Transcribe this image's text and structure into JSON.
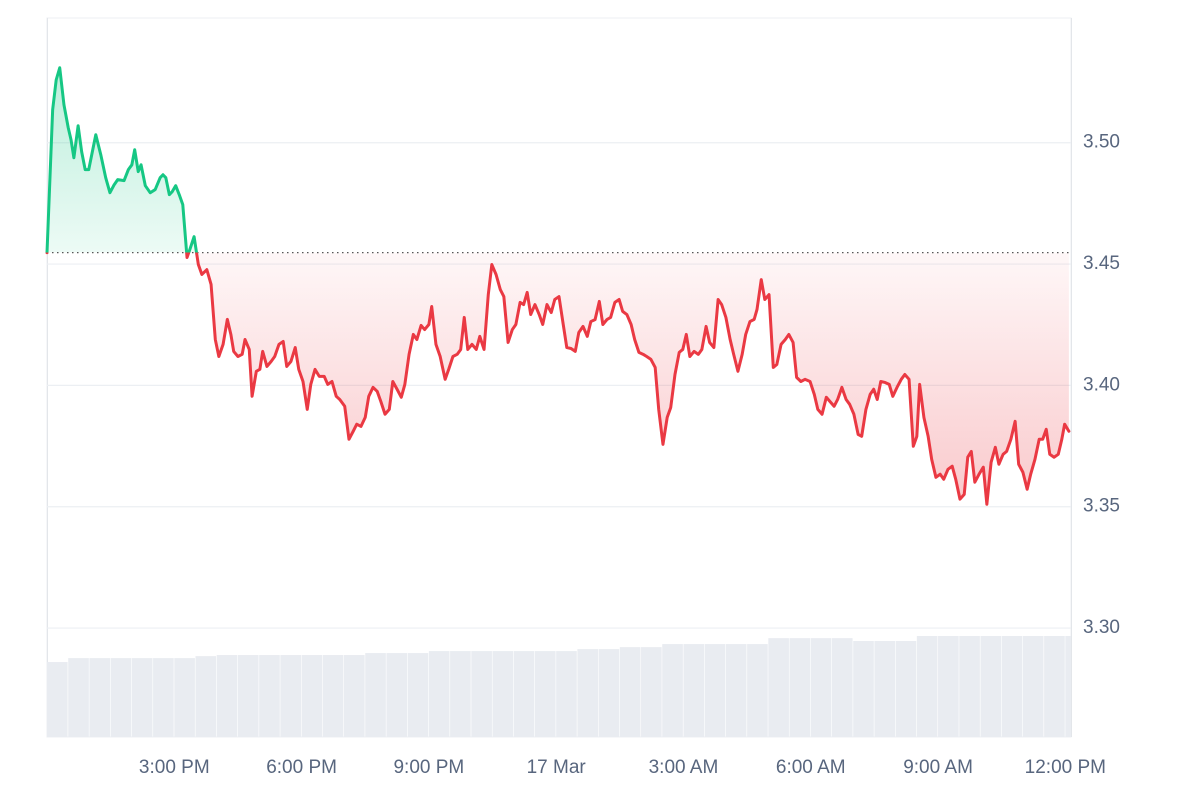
{
  "chart_data": {
    "type": "line",
    "x": [
      0,
      8,
      13,
      18,
      24,
      30,
      34,
      38,
      44,
      49,
      54,
      59,
      69,
      76,
      83,
      89,
      95,
      100,
      109,
      115,
      120,
      124,
      129,
      133,
      139,
      146,
      153,
      160,
      164,
      168,
      173,
      177,
      182,
      187,
      192,
      198,
      202,
      208,
      214,
      219,
      226,
      232,
      238,
      243,
      249,
      255,
      260,
      264,
      270,
      276,
      280,
      286,
      290,
      296,
      301,
      305,
      311,
      317,
      322,
      328,
      334,
      339,
      345,
      351,
      356,
      362,
      368,
      373,
      379,
      385,
      392,
      397,
      403,
      409,
      414,
      421,
      427,
      433,
      438,
      444,
      450,
      455,
      461,
      467,
      472,
      478,
      484,
      489,
      495,
      501,
      506,
      512,
      518,
      523,
      529,
      534,
      540,
      544,
      550,
      556,
      563,
      568,
      574,
      580,
      585,
      590,
      595,
      601,
      607,
      612,
      618,
      624,
      629,
      635,
      641,
      646,
      652,
      658,
      663,
      669,
      674,
      679,
      684,
      690,
      696,
      701,
      707,
      713,
      718,
      724,
      730,
      735,
      741,
      747,
      752,
      758,
      764,
      769,
      775,
      781,
      786,
      792,
      797,
      803,
      809,
      814,
      820,
      826,
      831,
      837,
      843,
      848,
      854,
      860,
      865,
      871,
      877,
      882,
      888,
      894,
      899,
      904,
      909,
      915,
      921,
      926,
      932,
      937,
      943,
      949,
      954,
      960,
      966,
      971,
      977,
      983,
      988,
      994,
      1000,
      1004,
      1010,
      1015,
      1021,
      1027,
      1032,
      1038,
      1044,
      1049,
      1055,
      1060,
      1066,
      1072,
      1079,
      1085,
      1090,
      1096,
      1102,
      1107,
      1113,
      1118,
      1124,
      1130,
      1135,
      1141,
      1147,
      1152,
      1158,
      1164,
      1169,
      1174,
      1179,
      1185,
      1191,
      1196,
      1202,
      1208,
      1213,
      1219,
      1225,
      1230,
      1234,
      1240,
      1246,
      1251,
      1257,
      1263,
      1268,
      1274,
      1280,
      1285,
      1291,
      1297,
      1302,
      1307,
      1312,
      1318,
      1324,
      1329,
      1335,
      1341,
      1346,
      1352,
      1357,
      1363,
      1369,
      1374,
      1380,
      1386,
      1391,
      1397,
      1403,
      1408,
      1413,
      1418,
      1424,
      1430,
      1435,
      1439,
      1445
    ],
    "values": [
      3.4547,
      3.5136,
      3.5259,
      3.5309,
      3.5156,
      3.5062,
      3.5012,
      3.4938,
      3.507,
      3.4963,
      3.4889,
      3.4889,
      3.5033,
      3.4951,
      3.4856,
      3.4794,
      3.4827,
      3.4848,
      3.4844,
      3.4889,
      3.4909,
      3.4971,
      3.4881,
      3.4909,
      3.4823,
      3.4794,
      3.4807,
      3.4856,
      3.4868,
      3.4856,
      3.4786,
      3.4798,
      3.4823,
      3.4786,
      3.4745,
      3.4527,
      3.456,
      3.4613,
      3.4498,
      3.4457,
      3.4477,
      3.4416,
      3.4189,
      3.4119,
      3.4169,
      3.4272,
      3.421,
      3.414,
      3.4119,
      3.4128,
      3.4189,
      3.4148,
      3.3955,
      3.4058,
      3.4066,
      3.414,
      3.4078,
      3.4099,
      3.4119,
      3.4169,
      3.4181,
      3.4078,
      3.4099,
      3.4156,
      3.4066,
      3.4016,
      3.3901,
      3.4004,
      3.4066,
      3.4037,
      3.4037,
      3.4004,
      3.4016,
      3.3955,
      3.3942,
      3.3914,
      3.3778,
      3.3811,
      3.384,
      3.3831,
      3.3868,
      3.3955,
      3.3992,
      3.3975,
      3.3934,
      3.3881,
      3.3901,
      3.4016,
      3.3984,
      3.3951,
      3.4004,
      3.4128,
      3.421,
      3.4189,
      3.4247,
      3.423,
      3.4251,
      3.4325,
      3.4169,
      3.4119,
      3.4025,
      3.4066,
      3.4119,
      3.4128,
      3.4148,
      3.428,
      3.4148,
      3.4169,
      3.4148,
      3.4202,
      3.4148,
      3.4374,
      3.4498,
      3.4457,
      3.4395,
      3.4366,
      3.4177,
      3.423,
      3.4251,
      3.4342,
      3.4333,
      3.4383,
      3.4292,
      3.4333,
      3.4292,
      3.4251,
      3.4333,
      3.43,
      3.4354,
      3.4366,
      3.4251,
      3.4156,
      3.4152,
      3.414,
      3.4218,
      3.4243,
      3.4202,
      3.4263,
      3.4271,
      3.4346,
      3.4251,
      3.4272,
      3.428,
      3.4342,
      3.4354,
      3.4305,
      3.4292,
      3.4251,
      3.4189,
      3.4136,
      3.4128,
      3.4119,
      3.4107,
      3.4074,
      3.3901,
      3.3757,
      3.3868,
      3.3909,
      3.4045,
      3.4136,
      3.4148,
      3.421,
      3.4119,
      3.414,
      3.4128,
      3.4148,
      3.4243,
      3.4177,
      3.4156,
      3.4354,
      3.4333,
      3.428,
      3.4189,
      3.4128,
      3.4058,
      3.4128,
      3.421,
      3.4263,
      3.4272,
      3.4313,
      3.4436,
      3.4354,
      3.4374,
      3.4074,
      3.4086,
      3.4169,
      3.4189,
      3.421,
      3.4177,
      3.4033,
      3.4016,
      3.4025,
      3.4016,
      3.3963,
      3.3901,
      3.3881,
      3.3951,
      3.3934,
      3.3914,
      3.3942,
      3.3992,
      3.3942,
      3.3922,
      3.3881,
      3.3798,
      3.379,
      3.3901,
      3.3963,
      3.3984,
      3.3942,
      3.4016,
      3.4012,
      3.4004,
      3.3955,
      3.3992,
      3.4025,
      3.4045,
      3.4025,
      3.3749,
      3.379,
      3.4004,
      3.3868,
      3.379,
      3.3695,
      3.3621,
      3.3634,
      3.3613,
      3.3654,
      3.3667,
      3.3613,
      3.3531,
      3.3551,
      3.3704,
      3.3728,
      3.3601,
      3.3634,
      3.3663,
      3.351,
      3.3683,
      3.3745,
      3.3675,
      3.3716,
      3.3728,
      3.3778,
      3.3852,
      3.3675,
      3.3642,
      3.3572,
      3.3634,
      3.3695,
      3.3778,
      3.3778,
      3.3819,
      3.3716,
      3.3704,
      3.3716,
      3.3778,
      3.384,
      3.3811
    ],
    "baseline": 3.4547,
    "up_color": "#16c784",
    "down_color": "#ea3943",
    "volume": {
      "color": "#e9ecf1",
      "x": [
        0,
        30,
        60,
        90,
        120,
        150,
        180,
        210,
        240,
        270,
        300,
        330,
        360,
        390,
        420,
        450,
        480,
        510,
        540,
        570,
        600,
        630,
        660,
        690,
        720,
        750,
        780,
        810,
        840,
        870,
        900,
        930,
        960,
        990,
        1020,
        1050,
        1080,
        1110,
        1140,
        1170,
        1200,
        1230,
        1260,
        1290,
        1320,
        1350,
        1380,
        1410,
        1440
      ],
      "values": [
        41.7,
        43.9,
        43.9,
        43.9,
        43.9,
        43.9,
        43.9,
        45,
        45.6,
        45.6,
        45.6,
        45.6,
        45.6,
        45.6,
        45.6,
        46.7,
        46.7,
        46.7,
        47.8,
        47.8,
        47.8,
        47.8,
        47.8,
        47.8,
        47.8,
        48.9,
        48.9,
        50,
        50,
        51.7,
        51.7,
        51.7,
        51.7,
        51.7,
        55,
        55,
        55,
        55,
        53.4,
        53.4,
        53.4,
        56.2,
        56.2,
        56.2,
        56.2,
        56.2,
        56.2,
        56.2,
        56.2
      ],
      "axis": "y2"
    },
    "xlim": [
      0,
      1448
    ],
    "ylim": [
      3.2551,
      3.5514
    ],
    "y2lim": [
      0,
      400
    ],
    "xticks": [
      {
        "value": 180,
        "label": "3:00 PM"
      },
      {
        "value": 360,
        "label": "6:00 PM"
      },
      {
        "value": 540,
        "label": "9:00 PM"
      },
      {
        "value": 720,
        "label": "17 Mar"
      },
      {
        "value": 900,
        "label": "3:00 AM"
      },
      {
        "value": 1080,
        "label": "6:00 AM"
      },
      {
        "value": 1260,
        "label": "9:00 AM"
      },
      {
        "value": 1440,
        "label": "12:00 PM"
      }
    ],
    "yticks": [
      {
        "value": 3.5,
        "label": "3.50"
      },
      {
        "value": 3.45,
        "label": "3.45"
      },
      {
        "value": 3.4,
        "label": "3.40"
      },
      {
        "value": 3.35,
        "label": "3.35"
      },
      {
        "value": 3.3,
        "label": "3.30"
      }
    ],
    "grid": true
  }
}
